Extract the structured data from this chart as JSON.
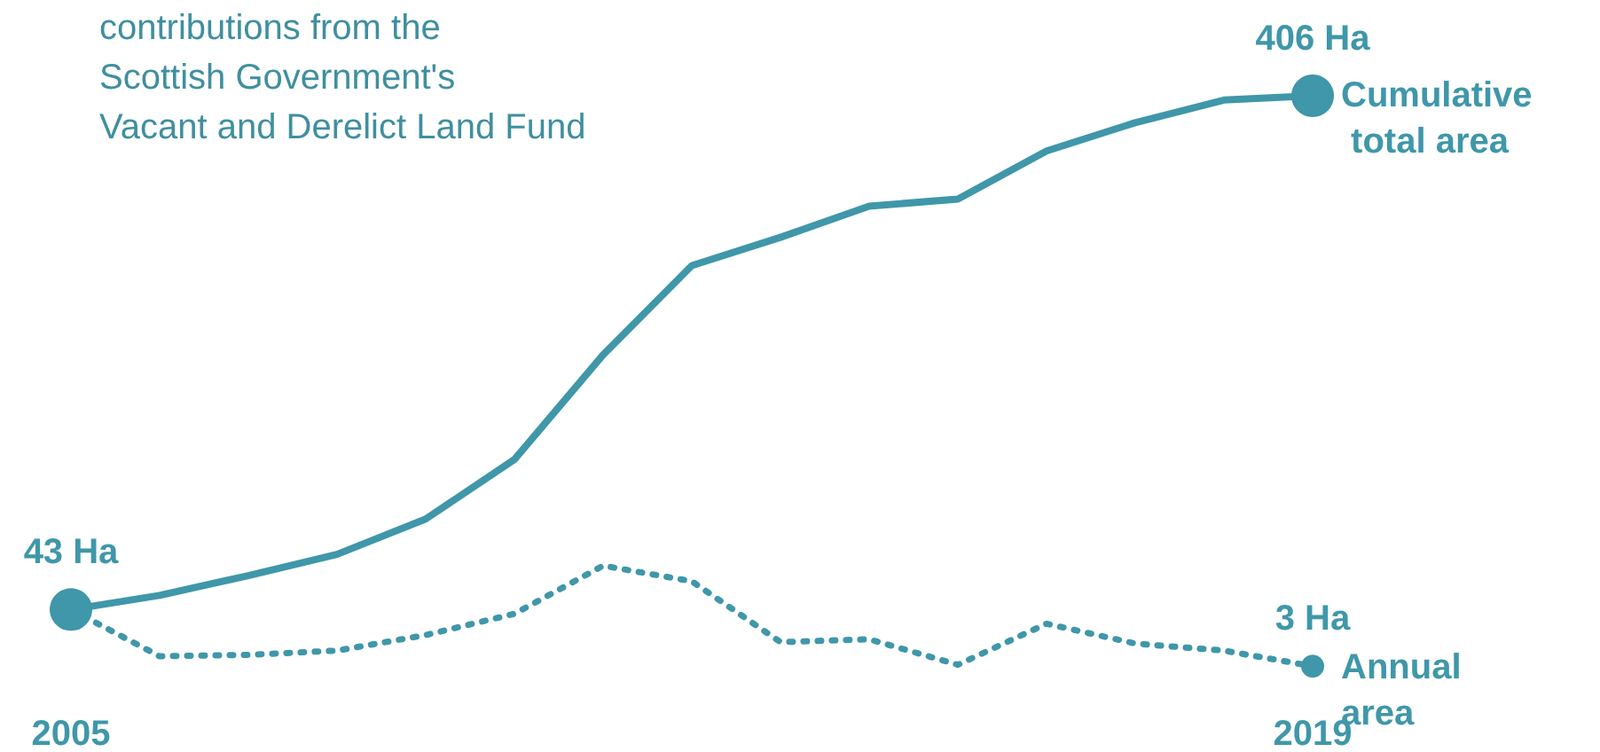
{
  "chart_data": {
    "type": "line",
    "annotations": [
      "contributions from the\nScottish Government's\nVacant and Derelict Land Fund"
    ],
    "categories": [
      "2005",
      null,
      null,
      null,
      null,
      null,
      null,
      null,
      null,
      null,
      null,
      null,
      null,
      null,
      "2019"
    ],
    "series": [
      {
        "name": "Cumulative total area",
        "color": "#3f97a9",
        "line_style": "solid",
        "values": [
          43,
          53,
          67,
          82,
          107,
          149,
          223,
          286,
          306,
          328,
          333,
          367,
          387,
          403,
          406
        ],
        "value_labels": [
          "43 Ha",
          null,
          null,
          null,
          null,
          null,
          null,
          null,
          null,
          null,
          null,
          null,
          null,
          null,
          "406 Ha"
        ]
      },
      {
        "name": "Annual area",
        "color": "#3f97a9",
        "line_style": "dotted",
        "values": [
          43,
          10,
          11,
          14,
          25,
          40,
          74,
          63,
          20,
          22,
          4,
          33,
          19,
          14,
          3
        ],
        "value_labels": [
          null,
          null,
          null,
          null,
          null,
          null,
          null,
          null,
          null,
          null,
          null,
          null,
          null,
          null,
          "3 Ha"
        ]
      }
    ],
    "grid": false,
    "legend": false
  }
}
